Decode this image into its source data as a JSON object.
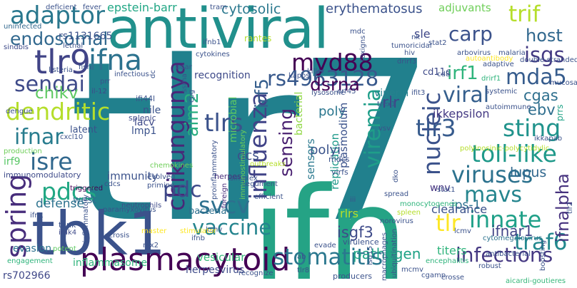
{
  "words": [
    {
      "text": "tlr7",
      "color": "#21808d"
    },
    {
      "text": "ifn",
      "color": "#25a385"
    },
    {
      "text": "antiviral",
      "color": "#21908c"
    },
    {
      "text": "tbk1",
      "color": "#3b528b"
    },
    {
      "text": "plasmacytoid",
      "color": "#440154"
    },
    {
      "text": "adaptor",
      "color": "#2a788e"
    },
    {
      "text": "endosomal",
      "color": "#31688e"
    },
    {
      "text": "tlr9",
      "color": "#414487"
    },
    {
      "text": "ifna",
      "color": "#2c728e"
    },
    {
      "text": "sendai",
      "color": "#3e4a89"
    },
    {
      "text": "dendritic",
      "color": "#b5de2b"
    },
    {
      "text": "chikv",
      "color": "#5ec962"
    },
    {
      "text": "ifnar",
      "color": "#287c8e"
    },
    {
      "text": "isre",
      "color": "#31688e"
    },
    {
      "text": "pdcs",
      "color": "#22a884"
    },
    {
      "text": "spring",
      "color": "#472d7b"
    },
    {
      "text": "chikungunya",
      "color": "#482878"
    },
    {
      "text": "influenza",
      "color": "#404387"
    },
    {
      "text": "tlrs",
      "color": "#3b528b"
    },
    {
      "text": "myd88",
      "color": "#440154"
    },
    {
      "text": "rs4963128",
      "color": "#38598c"
    },
    {
      "text": "carp",
      "color": "#3b528b"
    },
    {
      "text": "trif",
      "color": "#b5de2b"
    },
    {
      "text": "host",
      "color": "#31688e"
    },
    {
      "text": "isgs",
      "color": "#443a83"
    },
    {
      "text": "irf1",
      "color": "#2fb47c"
    },
    {
      "text": "mda5",
      "color": "#365c8d"
    },
    {
      "text": "viral",
      "color": "#355f8d"
    },
    {
      "text": "cgas",
      "color": "#2e6f8e"
    },
    {
      "text": "ebv",
      "color": "#2e6e8e"
    },
    {
      "text": "sting",
      "color": "#20938c"
    },
    {
      "text": "tlr3",
      "color": "#375b8d"
    },
    {
      "text": "toll-like",
      "color": "#1f998a"
    },
    {
      "text": "viruses",
      "color": "#2c728e"
    },
    {
      "text": "mavs",
      "color": "#25858e"
    },
    {
      "text": "tlr",
      "color": "#fde725"
    },
    {
      "text": "innate",
      "color": "#1fa088"
    },
    {
      "text": "traf6",
      "color": "#23888e"
    },
    {
      "text": "ifnalpha",
      "color": "#46327e"
    },
    {
      "text": "infections",
      "color": "#453882"
    },
    {
      "text": "ifnar1",
      "color": "#414487"
    },
    {
      "text": "nucleic",
      "color": "#3b528b"
    },
    {
      "text": "viremia",
      "color": "#1f9e89"
    },
    {
      "text": "stomatitis",
      "color": "#2a778e"
    },
    {
      "text": "vaccine",
      "color": "#25848e"
    },
    {
      "text": "svcv",
      "color": "#2d708e"
    },
    {
      "text": "pdc",
      "color": "#3e4989"
    },
    {
      "text": "sensing",
      "color": "#481f70"
    },
    {
      "text": "aim2",
      "color": "#28ae80"
    },
    {
      "text": "irf5",
      "color": "#355e8d"
    },
    {
      "text": "dsrna",
      "color": "#440154"
    },
    {
      "text": "rlr",
      "color": "#3f4788"
    },
    {
      "text": "viperin",
      "color": "#27808e"
    },
    {
      "text": "isgf3",
      "color": "#3e4a89"
    },
    {
      "text": "replication",
      "color": "#1f9a8a"
    },
    {
      "text": "poly",
      "color": "#2a768e"
    },
    {
      "text": "polyi",
      "color": "#3a538b"
    },
    {
      "text": "dcs",
      "color": "#3d4e8a"
    },
    {
      "text": "pathogen",
      "color": "#20a386"
    },
    {
      "text": "rlrs",
      "color": "#b8de29"
    },
    {
      "text": "ips-1",
      "color": "#2c718e"
    },
    {
      "text": "wnv",
      "color": "#453581"
    },
    {
      "text": "clearance",
      "color": "#3b528b"
    },
    {
      "text": "titers",
      "color": "#2fb47c"
    },
    {
      "text": "lupus",
      "color": "#31688e"
    },
    {
      "text": "ikkepsilon",
      "color": "#443983"
    },
    {
      "text": "epstein-barr",
      "color": "#22a785"
    },
    {
      "text": "cytosolic",
      "color": "#2a788e"
    },
    {
      "text": "erythematosus",
      "color": "#3b528b"
    },
    {
      "text": "sle",
      "color": "#3f4788"
    },
    {
      "text": "adjuvants",
      "color": "#6ece58"
    },
    {
      "text": "recognition",
      "color": "#3e4a89"
    },
    {
      "text": "microbial",
      "color": "#5ec962"
    },
    {
      "text": "bacterial",
      "color": "#8fd744"
    },
    {
      "text": "immunity",
      "color": "#3b528b"
    },
    {
      "text": "lmp1",
      "color": "#3b528b"
    },
    {
      "text": "lacv",
      "color": "#3e4a89"
    },
    {
      "text": "nile",
      "color": "#3a538b"
    },
    {
      "text": "west",
      "color": "#31688e"
    },
    {
      "text": "defense",
      "color": "#2c728e"
    },
    {
      "text": "bacteria",
      "color": "#2d708e"
    },
    {
      "text": "vesicular",
      "color": "#35b779"
    },
    {
      "text": "evasion",
      "color": "#2c728e"
    },
    {
      "text": "inflammasome",
      "color": "#2fb47c"
    },
    {
      "text": "herpesvirus",
      "color": "#3e4a89"
    },
    {
      "text": "rs702966",
      "color": "#3f4788"
    },
    {
      "text": "sensors",
      "color": "#2a788e"
    },
    {
      "text": "plasmodium",
      "color": "#3b528b"
    },
    {
      "text": "irf9",
      "color": "#58c765"
    },
    {
      "text": "latent",
      "color": "#3b528b"
    },
    {
      "text": "immunomodulatory",
      "color": "#3e4a89"
    },
    {
      "text": "mdcs",
      "color": "#3b528b"
    },
    {
      "text": "herpes",
      "color": "#472d7b"
    },
    {
      "text": "virfs",
      "color": "#3b528b"
    },
    {
      "text": "cd11c",
      "color": "#3e4a89"
    },
    {
      "text": "rs1131665",
      "color": "#3b528b"
    },
    {
      "text": "ifi44l",
      "color": "#3b528b"
    },
    {
      "text": "splenic",
      "color": "#3e4a89"
    },
    {
      "text": "prrs",
      "color": "#20a386"
    },
    {
      "text": "uninfected",
      "color": "#31688e"
    },
    {
      "text": "sindbis",
      "color": "#3e4a89"
    },
    {
      "text": "listeria",
      "color": "#3b528b"
    },
    {
      "text": "dengue",
      "color": "#3b528b"
    },
    {
      "text": "il-12",
      "color": "#3e4a89"
    },
    {
      "text": "cxcl10",
      "color": "#3b528b"
    },
    {
      "text": "production",
      "color": "#6ece58"
    },
    {
      "text": "triggered",
      "color": "#440154"
    },
    {
      "text": "ifn1",
      "color": "#3b528b"
    },
    {
      "text": "tank",
      "color": "#3b528b"
    },
    {
      "text": "irak4",
      "color": "#3e4a89"
    },
    {
      "text": "potent",
      "color": "#5ec962"
    },
    {
      "text": "engagement",
      "color": "#2fb47c"
    },
    {
      "text": "chemokines",
      "color": "#6ece58"
    },
    {
      "text": "necrosis",
      "color": "#3b528b"
    },
    {
      "text": "master",
      "color": "#fde725"
    },
    {
      "text": "neutrophils",
      "color": "#3e4a89"
    },
    {
      "text": "paramyxovirus",
      "color": "#3b528b"
    },
    {
      "text": "mx2",
      "color": "#3b528b"
    },
    {
      "text": "ifnb",
      "color": "#3b528b"
    },
    {
      "text": "kshv",
      "color": "#3b528b"
    },
    {
      "text": "simplex",
      "color": "#3b528b"
    },
    {
      "text": "foreign",
      "color": "#472d7b"
    },
    {
      "text": "evolved",
      "color": "#3b528b"
    },
    {
      "text": "priming",
      "color": "#3b528b"
    },
    {
      "text": "tegument",
      "color": "#3b528b"
    },
    {
      "text": "recognize",
      "color": "#3b528b"
    },
    {
      "text": "stimulator",
      "color": "#fde725"
    },
    {
      "text": "ab",
      "color": "#3b528b"
    },
    {
      "text": "tlr8",
      "color": "#3b528b"
    },
    {
      "text": "evade",
      "color": "#3b528b"
    },
    {
      "text": "producers",
      "color": "#3b528b"
    },
    {
      "text": "virulence",
      "color": "#3b528b"
    },
    {
      "text": "isg15",
      "color": "#3b528b"
    },
    {
      "text": "macrophages",
      "color": "#3b528b"
    },
    {
      "text": "ubiquitination",
      "color": "#3b528b"
    },
    {
      "text": "mcmv",
      "color": "#3b528b"
    },
    {
      "text": "cgamp",
      "color": "#3b528b"
    },
    {
      "text": "crosse",
      "color": "#3b528b"
    },
    {
      "text": "norovirus",
      "color": "#3b528b"
    },
    {
      "text": "spleen",
      "color": "#b5de2b"
    },
    {
      "text": "encephalitis",
      "color": "#2fb47c"
    },
    {
      "text": "cytomegalovirus",
      "color": "#2c728e"
    },
    {
      "text": "antibacterial",
      "color": "#3b528b"
    },
    {
      "text": "robust",
      "color": "#3b528b"
    },
    {
      "text": "boosting",
      "color": "#3b528b"
    },
    {
      "text": "aicardi-goutieres",
      "color": "#35b779"
    },
    {
      "text": "lcmv",
      "color": "#3b528b"
    },
    {
      "text": "monocytogenes",
      "color": "#2fb47c"
    },
    {
      "text": "dko",
      "color": "#3b528b"
    },
    {
      "text": "stat1",
      "color": "#3b528b"
    },
    {
      "text": "polyinosinic-polycytidylic",
      "color": "#b5de2b"
    },
    {
      "text": "ikkapab",
      "color": "#3b528b"
    },
    {
      "text": "autoimmune",
      "color": "#3b528b"
    },
    {
      "text": "systemic",
      "color": "#3b528b"
    },
    {
      "text": "ifit3",
      "color": "#3b528b"
    },
    {
      "text": "trex1",
      "color": "#3b528b"
    },
    {
      "text": "cd8",
      "color": "#3b528b"
    },
    {
      "text": "drirf1",
      "color": "#2fb47c"
    },
    {
      "text": "drirf3",
      "color": "#3b528b"
    },
    {
      "text": "killer",
      "color": "#3b528b"
    },
    {
      "text": "mucosal",
      "color": "#3b528b"
    },
    {
      "text": "adaptive",
      "color": "#3b528b"
    },
    {
      "text": "stat2",
      "color": "#3b528b"
    },
    {
      "text": "malaria",
      "color": "#3b528b"
    },
    {
      "text": "arbovirus",
      "color": "#3b528b"
    },
    {
      "text": "autoantibody",
      "color": "#fde725"
    },
    {
      "text": "double-stranded",
      "color": "#3b528b"
    },
    {
      "text": "nk",
      "color": "#3b528b"
    },
    {
      "text": "tumoricidal",
      "color": "#3b528b"
    },
    {
      "text": "hiv",
      "color": "#3b528b"
    },
    {
      "text": "toxigns",
      "color": "#3b528b"
    },
    {
      "text": "mdc",
      "color": "#3b528b"
    },
    {
      "text": "tram",
      "color": "#3b528b"
    },
    {
      "text": "rantes",
      "color": "#b5de2b"
    },
    {
      "text": "cytokines",
      "color": "#3b528b"
    },
    {
      "text": "ifnb1",
      "color": "#3b528b"
    },
    {
      "text": "lethal",
      "color": "#3b528b"
    },
    {
      "text": "fever",
      "color": "#3b528b"
    },
    {
      "text": "deficient",
      "color": "#3b528b"
    },
    {
      "text": "fish",
      "color": "#3b528b"
    },
    {
      "text": "adar",
      "color": "#3b528b"
    },
    {
      "text": "infectious",
      "color": "#3b528b"
    },
    {
      "text": "prr",
      "color": "#3b528b"
    },
    {
      "text": "dc",
      "color": "#3b528b"
    },
    {
      "text": "ssrna",
      "color": "#3b528b"
    },
    {
      "text": "cpg",
      "color": "#3b528b"
    },
    {
      "text": "proinflammatory",
      "color": "#3b528b"
    },
    {
      "text": "outbreaks",
      "color": "#b5de2b"
    },
    {
      "text": "lysosome",
      "color": "#3b528b"
    },
    {
      "text": "orf45",
      "color": "#3b528b"
    },
    {
      "text": "kaposi",
      "color": "#3b528b"
    },
    {
      "text": "cdcs",
      "color": "#3b528b"
    },
    {
      "text": "inflammatory",
      "color": "#3b528b"
    },
    {
      "text": "iii",
      "color": "#3b528b"
    },
    {
      "text": "immunostimulatory",
      "color": "#6ece58"
    },
    {
      "text": "efficient",
      "color": "#3b528b"
    },
    {
      "text": "vsv",
      "color": "#3b528b"
    },
    {
      "text": "spread",
      "color": "#3b528b"
    },
    {
      "text": "tlr2",
      "color": "#3b528b"
    }
  ]
}
